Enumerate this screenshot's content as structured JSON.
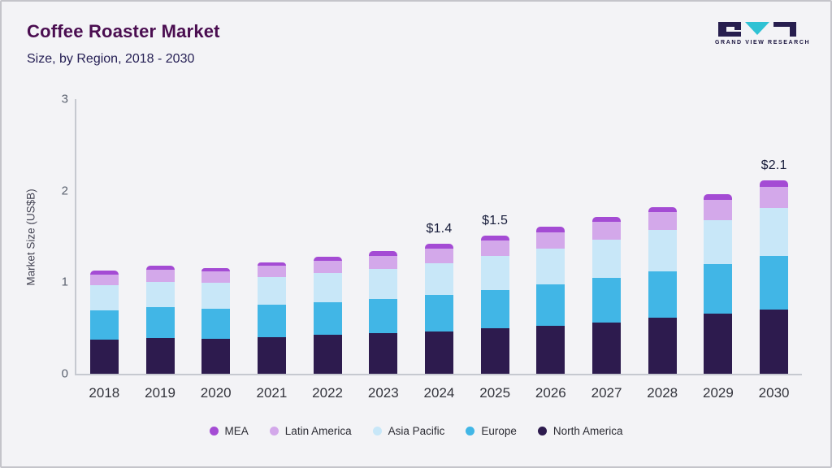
{
  "header": {
    "title": "Coffee Roaster Market",
    "subtitle": "Size, by Region, 2018 - 2030"
  },
  "logo": {
    "text": "GRAND VIEW RESEARCH",
    "mark_dark": "#271e4e",
    "mark_teal": "#2fc2d4"
  },
  "chart_data": {
    "type": "bar",
    "stacked": true,
    "title": "Coffee Roaster Market Size, by Region, 2018 - 2030",
    "ylabel": "Market Size (US$B)",
    "xlabel": "",
    "ylim": [
      0,
      3
    ],
    "yticks": [
      0,
      1,
      2,
      3
    ],
    "grid": false,
    "legend_position": "bottom",
    "categories": [
      "2018",
      "2019",
      "2020",
      "2021",
      "2022",
      "2023",
      "2024",
      "2025",
      "2026",
      "2027",
      "2028",
      "2029",
      "2030"
    ],
    "series": [
      {
        "name": "North America",
        "color": "#2d1b4e",
        "values": [
          0.37,
          0.39,
          0.38,
          0.4,
          0.42,
          0.44,
          0.46,
          0.49,
          0.52,
          0.56,
          0.61,
          0.65,
          0.7
        ]
      },
      {
        "name": "Europe",
        "color": "#41b6e6",
        "values": [
          0.32,
          0.33,
          0.33,
          0.35,
          0.36,
          0.37,
          0.4,
          0.42,
          0.45,
          0.48,
          0.5,
          0.54,
          0.58
        ]
      },
      {
        "name": "Asia Pacific",
        "color": "#c8e7f8",
        "values": [
          0.27,
          0.28,
          0.28,
          0.3,
          0.31,
          0.33,
          0.34,
          0.37,
          0.39,
          0.42,
          0.45,
          0.48,
          0.52
        ]
      },
      {
        "name": "Latin America",
        "color": "#d3a8ea",
        "values": [
          0.12,
          0.13,
          0.12,
          0.12,
          0.14,
          0.14,
          0.16,
          0.17,
          0.18,
          0.19,
          0.2,
          0.22,
          0.23
        ]
      },
      {
        "name": "MEA",
        "color": "#a44bd4",
        "values": [
          0.04,
          0.04,
          0.04,
          0.04,
          0.04,
          0.05,
          0.05,
          0.05,
          0.06,
          0.05,
          0.05,
          0.06,
          0.07
        ]
      }
    ],
    "totals": [
      1.12,
      1.17,
      1.15,
      1.21,
      1.27,
      1.33,
      1.41,
      1.5,
      1.6,
      1.7,
      1.81,
      1.95,
      2.1
    ],
    "annotations": [
      {
        "category": "2024",
        "label": "$1.4"
      },
      {
        "category": "2025",
        "label": "$1.5"
      },
      {
        "category": "2030",
        "label": "$2.1"
      }
    ],
    "legend_order": [
      "MEA",
      "Latin America",
      "Asia Pacific",
      "Europe",
      "North America"
    ]
  }
}
